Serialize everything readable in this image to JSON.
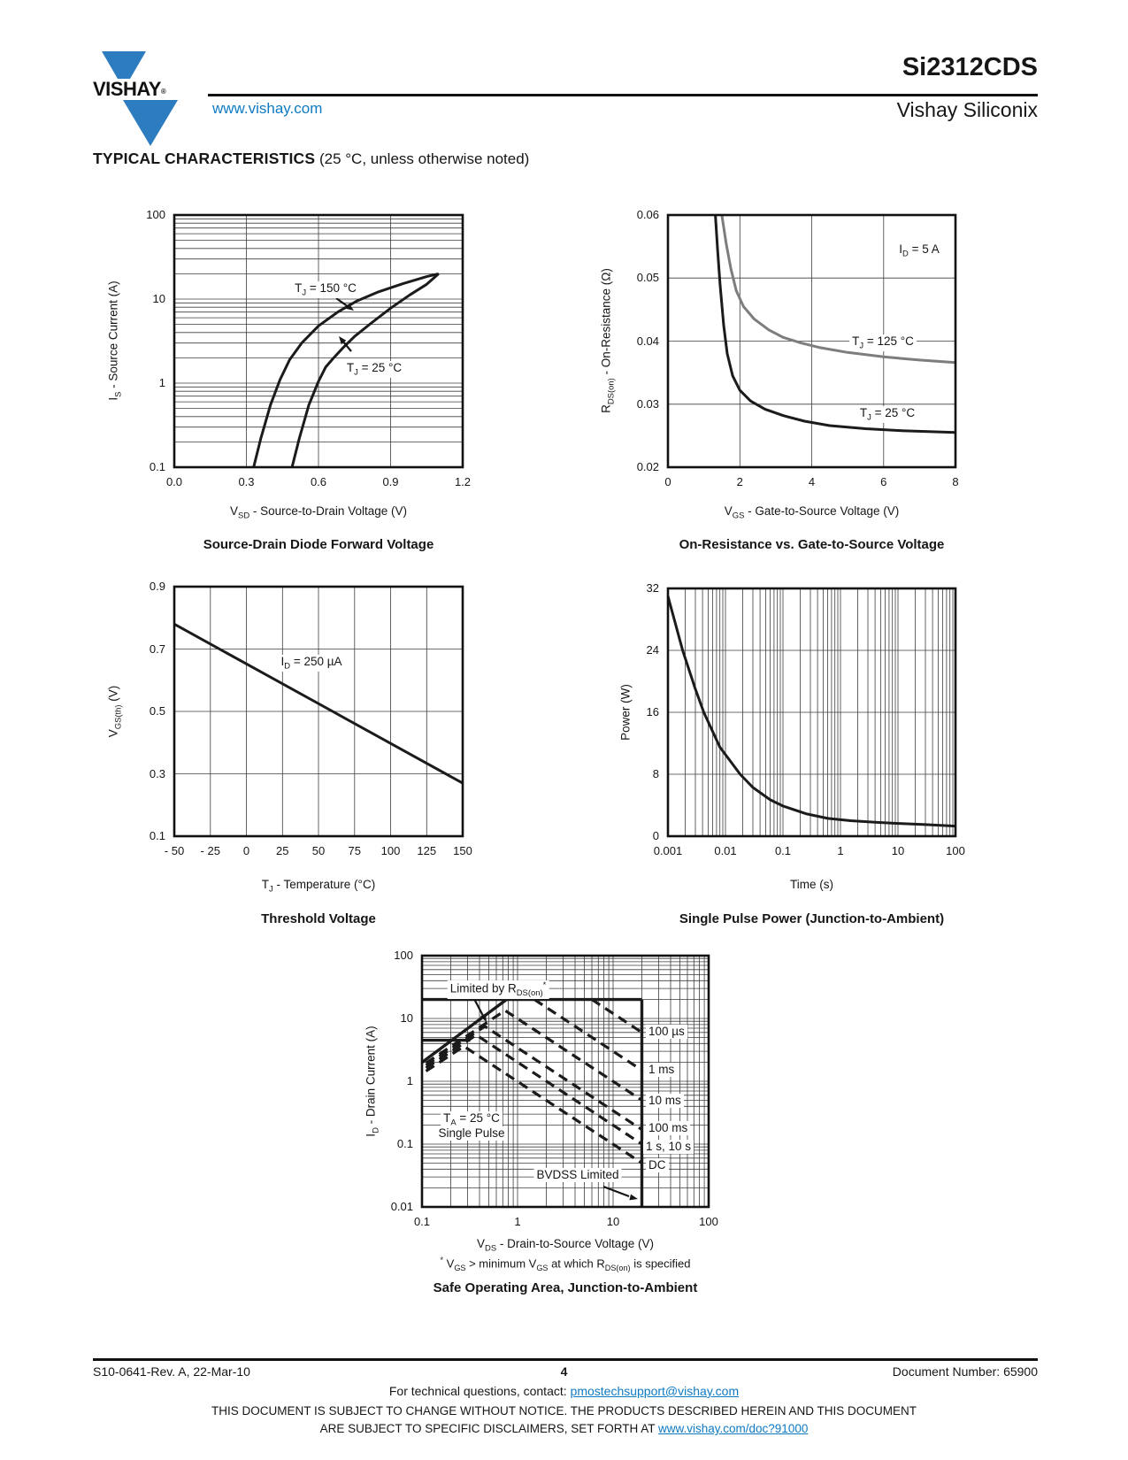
{
  "header": {
    "logo_text": "VISHAY",
    "logo_reg": "®",
    "website": "www.vishay.com",
    "part_number": "Si2312CDS",
    "division": "Vishay Siliconix"
  },
  "section": {
    "title": "TYPICAL CHARACTERISTICS",
    "subtitle": " (25 °C, unless otherwise noted)"
  },
  "charts": {
    "fwd": {
      "type": "line",
      "title": "Source-Drain Diode Forward Voltage",
      "xlabel": "V_{SD} - Source-to-Drain Voltage (V)",
      "ylabel": "I_{S} - Source Current (A)",
      "x": {
        "min": 0,
        "max": 1.2,
        "log": false,
        "ticks": [
          0,
          0.3,
          0.6,
          0.9,
          1.2
        ],
        "labels": [
          "0.0",
          "0.3",
          "0.6",
          "0.9",
          "1.2"
        ]
      },
      "y": {
        "min": 0.1,
        "max": 100,
        "log": true,
        "ticks": [
          0.1,
          1,
          10,
          100
        ],
        "labels": [
          "0.1",
          "1",
          "10",
          "100"
        ]
      },
      "annotations": [
        "T_{J} = 150 °C",
        "T_{J} = 25 °C"
      ],
      "series": [
        {
          "name": "TJ = 150 C",
          "color": "#1b1b1b",
          "width": 3,
          "points": [
            [
              0.33,
              0.1
            ],
            [
              0.36,
              0.22
            ],
            [
              0.4,
              0.55
            ],
            [
              0.44,
              1.1
            ],
            [
              0.48,
              1.9
            ],
            [
              0.53,
              3.0
            ],
            [
              0.6,
              4.8
            ],
            [
              0.68,
              7.0
            ],
            [
              0.76,
              9.5
            ],
            [
              0.85,
              12.2
            ],
            [
              0.95,
              15.2
            ],
            [
              1.05,
              18.5
            ],
            [
              1.1,
              20
            ]
          ]
        },
        {
          "name": "TJ = 25 C",
          "color": "#1b1b1b",
          "width": 3,
          "points": [
            [
              0.49,
              0.1
            ],
            [
              0.52,
              0.22
            ],
            [
              0.56,
              0.55
            ],
            [
              0.6,
              1.05
            ],
            [
              0.63,
              1.55
            ],
            [
              0.66,
              1.95
            ],
            [
              0.7,
              2.6
            ],
            [
              0.75,
              3.6
            ],
            [
              0.82,
              5.2
            ],
            [
              0.9,
              7.8
            ],
            [
              0.98,
              11.2
            ],
            [
              1.05,
              15.0
            ],
            [
              1.1,
              20
            ]
          ]
        }
      ]
    },
    "rds": {
      "type": "line",
      "title": "On-Resistance vs. Gate-to-Source Voltage",
      "xlabel": "V_{GS} - Gate-to-Source Voltage (V)",
      "ylabel": "R_{DS(on)} - On-Resistance (Ω)",
      "x": {
        "min": 0,
        "max": 8,
        "log": false,
        "ticks": [
          0,
          2,
          4,
          6,
          8
        ],
        "labels": [
          "0",
          "2",
          "4",
          "6",
          "8"
        ]
      },
      "y": {
        "min": 0.02,
        "max": 0.06,
        "log": false,
        "ticks": [
          0.02,
          0.03,
          0.04,
          0.05,
          0.06
        ],
        "labels": [
          "0.02",
          "0.03",
          "0.04",
          "0.05",
          "0.06"
        ]
      },
      "annotations": [
        "I_{D} = 5 A",
        "T_{J} = 125 °C",
        "T_{J} = 25 °C"
      ],
      "series": [
        {
          "name": "TJ = 125 C",
          "color": "#7d7d7d",
          "width": 3,
          "points": [
            [
              1.5,
              0.06
            ],
            [
              1.62,
              0.0555
            ],
            [
              1.75,
              0.0515
            ],
            [
              1.9,
              0.048
            ],
            [
              2.1,
              0.0455
            ],
            [
              2.4,
              0.0435
            ],
            [
              2.8,
              0.0418
            ],
            [
              3.2,
              0.0406
            ],
            [
              3.7,
              0.0397
            ],
            [
              4.2,
              0.039
            ],
            [
              5.0,
              0.0382
            ],
            [
              6.0,
              0.0375
            ],
            [
              7.0,
              0.037
            ],
            [
              8.0,
              0.0366
            ]
          ]
        },
        {
          "name": "TJ = 25 C",
          "color": "#1b1b1b",
          "width": 3,
          "points": [
            [
              1.32,
              0.06
            ],
            [
              1.38,
              0.0545
            ],
            [
              1.45,
              0.049
            ],
            [
              1.55,
              0.0425
            ],
            [
              1.65,
              0.038
            ],
            [
              1.8,
              0.0345
            ],
            [
              2.0,
              0.0322
            ],
            [
              2.3,
              0.0305
            ],
            [
              2.7,
              0.0292
            ],
            [
              3.2,
              0.0282
            ],
            [
              3.8,
              0.0273
            ],
            [
              4.5,
              0.0266
            ],
            [
              5.5,
              0.0261
            ],
            [
              6.5,
              0.0258
            ],
            [
              8.0,
              0.0255
            ]
          ]
        }
      ]
    },
    "vth": {
      "type": "line",
      "title": "Threshold Voltage",
      "xlabel": "T_{J} - Temperature (°C)",
      "ylabel": "V_{GS(th)} (V)",
      "x": {
        "min": -50,
        "max": 150,
        "log": false,
        "ticks": [
          -50,
          -25,
          0,
          25,
          50,
          75,
          100,
          125,
          150
        ],
        "labels": [
          "- 50",
          "- 25",
          "0",
          "25",
          "50",
          "75",
          "100",
          "125",
          "150"
        ]
      },
      "y": {
        "min": 0.1,
        "max": 0.9,
        "log": false,
        "ticks": [
          0.1,
          0.3,
          0.5,
          0.7,
          0.9
        ],
        "labels": [
          "0.1",
          "0.3",
          "0.5",
          "0.7",
          "0.9"
        ]
      },
      "annotations": [
        "I_{D} = 250 µA"
      ],
      "series": [
        {
          "name": "VGS(th)",
          "color": "#1b1b1b",
          "width": 3,
          "points": [
            [
              -50,
              0.78
            ],
            [
              150,
              0.27
            ]
          ]
        }
      ]
    },
    "spp": {
      "type": "line",
      "title": "Single Pulse Power (Junction-to-Ambient)",
      "xlabel": "Time (s)",
      "ylabel": "Power (W)",
      "x": {
        "min": 0.001,
        "max": 100,
        "log": true,
        "ticks": [
          0.001,
          0.01,
          0.1,
          1,
          10,
          100
        ],
        "labels": [
          "0.001",
          "0.01",
          "0.1",
          "1",
          "10",
          "100"
        ]
      },
      "y": {
        "min": 0,
        "max": 32,
        "log": false,
        "ticks": [
          0,
          8,
          16,
          24,
          32
        ],
        "labels": [
          "0",
          "8",
          "16",
          "24",
          "32"
        ]
      },
      "annotations": [],
      "series": [
        {
          "name": "single pulse power",
          "color": "#1b1b1b",
          "width": 3,
          "points": [
            [
              0.001,
              31
            ],
            [
              0.0018,
              24
            ],
            [
              0.003,
              19
            ],
            [
              0.0042,
              16
            ],
            [
              0.008,
              11.5
            ],
            [
              0.018,
              8
            ],
            [
              0.03,
              6.3
            ],
            [
              0.06,
              4.7
            ],
            [
              0.1,
              3.9
            ],
            [
              0.25,
              2.9
            ],
            [
              0.6,
              2.3
            ],
            [
              1.5,
              2.0
            ],
            [
              4,
              1.8
            ],
            [
              10,
              1.65
            ],
            [
              30,
              1.5
            ],
            [
              100,
              1.3
            ]
          ]
        }
      ]
    },
    "soa": {
      "type": "line",
      "title": "Safe Operating Area, Junction-to-Ambient",
      "xlabel": "V_{DS} - Drain-to-Source Voltage (V)",
      "ylabel": "I_{D} - Drain Current (A)",
      "footnote": "^{*} V_{GS} > minimum V_{GS} at which R_{DS(on)} is specified",
      "x": {
        "min": 0.1,
        "max": 100,
        "log": true,
        "ticks": [
          0.1,
          1,
          10,
          100
        ],
        "labels": [
          "0.1",
          "1",
          "10",
          "100"
        ]
      },
      "y": {
        "min": 0.01,
        "max": 100,
        "log": true,
        "ticks": [
          0.01,
          0.1,
          1,
          10,
          100
        ],
        "labels": [
          "0.01",
          "0.1",
          "1",
          "10",
          "100"
        ]
      },
      "annotations": [
        "Limited by R_{DS(on)}^{*}",
        "T_{A} = 25 °C",
        "Single Pulse",
        "BVDSS Limited"
      ],
      "pulse_labels": [
        "100 µs",
        "1 ms",
        "10 ms",
        "100 ms",
        "1 s, 10 s",
        "DC"
      ],
      "series": [
        {
          "name": "100 us",
          "color": "#1b1b1b",
          "width": 3.2,
          "dash": "11 7",
          "points": [
            [
              6,
              20
            ],
            [
              20,
              6
            ]
          ]
        },
        {
          "name": "1 ms",
          "color": "#1b1b1b",
          "width": 3.2,
          "dash": "11 7",
          "points": [
            [
              1.5,
              20
            ],
            [
              20,
              1.5
            ]
          ]
        },
        {
          "name": "10 ms",
          "color": "#1b1b1b",
          "width": 3.2,
          "dash": "11 7",
          "points": [
            [
              0.11,
              1.95
            ],
            [
              0.74,
              13.4
            ],
            [
              20,
              0.5
            ]
          ]
        },
        {
          "name": "100 ms",
          "color": "#1b1b1b",
          "width": 3.2,
          "dash": "11 7",
          "points": [
            [
              0.11,
              1.8
            ],
            [
              0.455,
              7.5
            ],
            [
              20,
              0.17
            ]
          ]
        },
        {
          "name": "1 s, 10 s",
          "color": "#1b1b1b",
          "width": 3.2,
          "dash": "11 7",
          "points": [
            [
              0.11,
              1.63
            ],
            [
              0.37,
              5.45
            ],
            [
              20,
              0.1
            ]
          ]
        },
        {
          "name": "DC",
          "color": "#1b1b1b",
          "width": 3.2,
          "dash": "11 7",
          "points": [
            [
              0.11,
              1.45
            ],
            [
              0.275,
              3.6
            ],
            [
              20,
              0.05
            ]
          ]
        },
        {
          "name": "ID pulsed limit 20 A",
          "color": "#1b1b1b",
          "width": 3.4,
          "points": [
            [
              0.1,
              20
            ],
            [
              20,
              20
            ]
          ]
        },
        {
          "name": "RDS(on) limit",
          "color": "#1b1b1b",
          "width": 3.4,
          "points": [
            [
              0.1,
              2
            ],
            [
              0.9,
              24
            ]
          ]
        },
        {
          "name": "ID continuous limit 4.5 A",
          "color": "#1b1b1b",
          "width": 3.4,
          "points": [
            [
              0.1,
              4.5
            ],
            [
              0.32,
              4.5
            ]
          ]
        },
        {
          "name": "BVDSS limit 20 V",
          "color": "#1b1b1b",
          "width": 3.4,
          "points": [
            [
              20,
              0.01
            ],
            [
              20,
              20
            ]
          ]
        }
      ]
    }
  },
  "footer": {
    "revision": "S10-0641-Rev. A, 22-Mar-10",
    "page_number": "4",
    "doc_number": "Document Number: 65900",
    "contact_prefix": "For technical questions, contact: ",
    "contact_email": "pmostechsupport@vishay.com",
    "disclaimer_line1": "THIS DOCUMENT IS SUBJECT TO CHANGE WITHOUT NOTICE. THE PRODUCTS DESCRIBED HEREIN AND THIS DOCUMENT",
    "disclaimer_line2_prefix": "ARE SUBJECT TO SPECIFIC DISCLAIMERS, SET FORTH AT ",
    "disclaimer_line2_link": "www.vishay.com/doc?91000"
  }
}
